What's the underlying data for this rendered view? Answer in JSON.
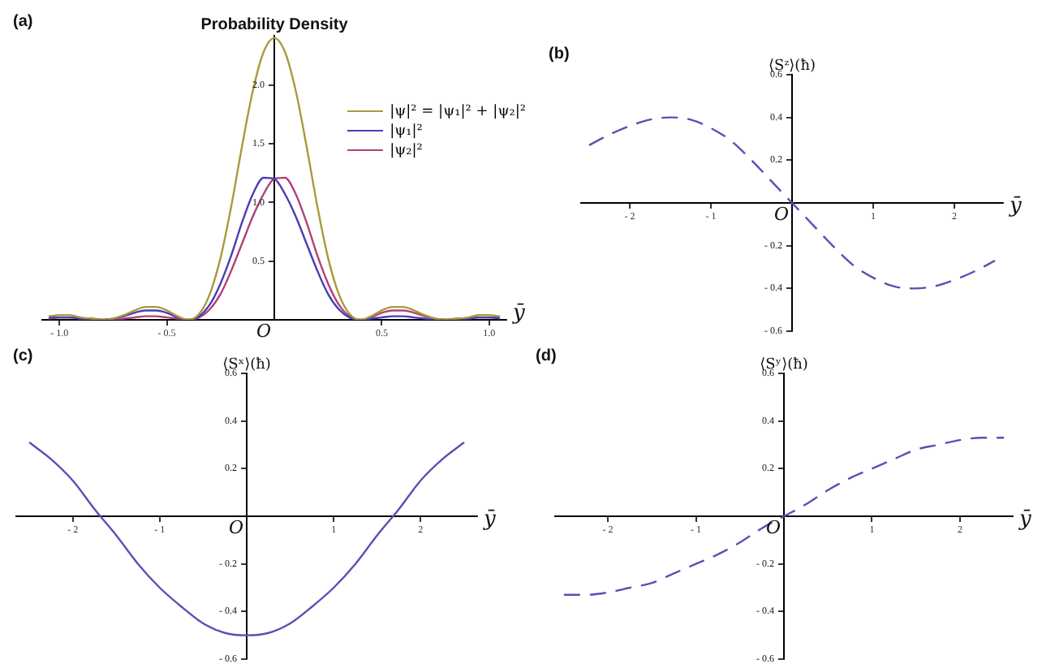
{
  "chart_data": [
    {
      "type": "line",
      "title": "Probability Density",
      "xlabel": "ȳ",
      "legend": "right",
      "line_style": "solid",
      "annotations": [
        "(a)",
        "O"
      ],
      "x": [
        -1.05,
        -1,
        -0.95,
        -0.9,
        -0.85,
        -0.8,
        -0.75,
        -0.7,
        -0.65,
        -0.6,
        -0.55,
        -0.5,
        -0.45,
        -0.4,
        -0.35,
        -0.3,
        -0.25,
        -0.2,
        -0.15,
        -0.1,
        -0.05,
        0,
        0.05,
        0.1,
        0.15,
        0.2,
        0.25,
        0.3,
        0.35,
        0.4,
        0.45,
        0.5,
        0.55,
        0.6,
        0.65,
        0.7,
        0.75,
        0.8,
        0.85,
        0.9,
        0.95,
        1,
        1.05
      ],
      "xlim": [
        -1.08,
        1.08
      ],
      "ylim": [
        0,
        2.42
      ],
      "xticks": [
        {
          "value": -1,
          "label": "- 1.0"
        },
        {
          "value": -0.5,
          "label": "- 0.5"
        },
        0.5,
        {
          "value": 1,
          "label": "1.0"
        }
      ],
      "yticks": [
        0.5,
        {
          "value": 1,
          "label": "1.0"
        },
        1.5,
        {
          "value": 2,
          "label": "2.0"
        }
      ],
      "series": [
        {
          "name": "|ψ|² = |ψ₁|² + |ψ₂|²",
          "color": "#a99a3c",
          "values": [
            0.03,
            0.04,
            0.04,
            0.02,
            0.01,
            0,
            0.01,
            0.04,
            0.08,
            0.11,
            0.11,
            0.08,
            0.03,
            0,
            0.05,
            0.22,
            0.53,
            0.97,
            1.48,
            1.95,
            2.28,
            2.4,
            2.28,
            1.95,
            1.48,
            0.97,
            0.53,
            0.22,
            0.05,
            0,
            0.03,
            0.08,
            0.11,
            0.11,
            0.08,
            0.04,
            0.01,
            0,
            0.01,
            0.02,
            0.04,
            0.04,
            0.03
          ]
        },
        {
          "name": "|ψ₁|²",
          "color": "#4a3db4",
          "values": [
            0.02,
            0.02,
            0.02,
            0.01,
            0.01,
            0,
            0.01,
            0.03,
            0.06,
            0.08,
            0.08,
            0.06,
            0.02,
            0,
            0.03,
            0.13,
            0.31,
            0.55,
            0.83,
            1.07,
            1.21,
            1.2,
            1.07,
            0.88,
            0.65,
            0.42,
            0.22,
            0.09,
            0.02,
            0,
            0.01,
            0.02,
            0.03,
            0.03,
            0.02,
            0.01,
            0,
            0,
            0,
            0.01,
            0.02,
            0.02,
            0.01
          ]
        },
        {
          "name": "|ψ₂|²",
          "color": "#b1407c",
          "values": [
            0.01,
            0.02,
            0.02,
            0.01,
            0,
            0,
            0,
            0.01,
            0.02,
            0.03,
            0.03,
            0.02,
            0.01,
            0,
            0.02,
            0.09,
            0.22,
            0.42,
            0.65,
            0.88,
            1.07,
            1.2,
            1.21,
            1.07,
            0.83,
            0.55,
            0.31,
            0.13,
            0.03,
            0,
            0.02,
            0.06,
            0.08,
            0.08,
            0.06,
            0.03,
            0.01,
            0,
            0.01,
            0.01,
            0.02,
            0.02,
            0.02
          ]
        }
      ]
    },
    {
      "type": "line",
      "xlabel": "ȳ",
      "ylabel": "⟨Sᶻ⟩(ħ)",
      "line_style": "dashed",
      "annotations": [
        "(b)",
        "O"
      ],
      "x": [
        -2.5,
        -2.25,
        -2,
        -1.75,
        -1.5,
        -1.25,
        -1,
        -0.75,
        -0.5,
        -0.25,
        0,
        0.25,
        0.5,
        0.75,
        1,
        1.25,
        1.5,
        1.75,
        2,
        2.25,
        2.5
      ],
      "xlim": [
        -2.6,
        2.6
      ],
      "ylim": [
        -0.6,
        0.6
      ],
      "xticks": [
        {
          "value": -2,
          "label": "- 2"
        },
        {
          "value": -1,
          "label": "- 1"
        },
        1,
        2
      ],
      "yticks": [
        {
          "value": -0.6,
          "label": "- 0.6"
        },
        {
          "value": -0.4,
          "label": "- 0.4"
        },
        {
          "value": -0.2,
          "label": "- 0.2"
        },
        0.2,
        0.4,
        0.6
      ],
      "series": [
        {
          "color": "#5552b4",
          "values": [
            0.27,
            0.32,
            0.36,
            0.39,
            0.4,
            0.39,
            0.35,
            0.29,
            0.2,
            0.1,
            0,
            -0.1,
            -0.2,
            -0.29,
            -0.35,
            -0.39,
            -0.4,
            -0.39,
            -0.36,
            -0.32,
            -0.27
          ]
        }
      ]
    },
    {
      "type": "line",
      "xlabel": "ȳ",
      "ylabel": "⟨Sˣ⟩(ħ)",
      "line_style": "solid",
      "annotations": [
        "(c)",
        "O"
      ],
      "x": [
        -2.5,
        -2.25,
        -2,
        -1.75,
        -1.5,
        -1.25,
        -1,
        -0.75,
        -0.5,
        -0.25,
        0,
        0.25,
        0.5,
        0.75,
        1,
        1.25,
        1.5,
        1.75,
        2,
        2.25,
        2.5
      ],
      "xlim": [
        -2.65,
        2.65
      ],
      "ylim": [
        -0.6,
        0.6
      ],
      "xticks": [
        {
          "value": -2,
          "label": "- 2"
        },
        {
          "value": -1,
          "label": "- 1"
        },
        1,
        2
      ],
      "yticks": [
        {
          "value": -0.6,
          "label": "- 0.6"
        },
        {
          "value": -0.4,
          "label": "- 0.4"
        },
        {
          "value": -0.2,
          "label": "- 0.2"
        },
        0.2,
        0.4,
        0.6
      ],
      "series": [
        {
          "color": "#5552b4",
          "values": [
            0.31,
            0.24,
            0.15,
            0.03,
            -0.08,
            -0.2,
            -0.3,
            -0.38,
            -0.45,
            -0.49,
            -0.5,
            -0.49,
            -0.45,
            -0.38,
            -0.3,
            -0.2,
            -0.08,
            0.03,
            0.15,
            0.24,
            0.31
          ]
        }
      ]
    },
    {
      "type": "line",
      "xlabel": "ȳ",
      "ylabel": "⟨Sʸ⟩(ħ)",
      "line_style": "dashed",
      "annotations": [
        "(d)",
        "O"
      ],
      "x": [
        -2.5,
        -2.25,
        -2,
        -1.75,
        -1.5,
        -1.25,
        -1,
        -0.75,
        -0.5,
        -0.25,
        0,
        0.25,
        0.5,
        0.75,
        1,
        1.25,
        1.5,
        1.75,
        2,
        2.25,
        2.5
      ],
      "xlim": [
        -2.6,
        2.6
      ],
      "ylim": [
        -0.6,
        0.6
      ],
      "xticks": [
        {
          "value": -2,
          "label": "- 2"
        },
        {
          "value": -1,
          "label": "- 1"
        },
        1,
        2
      ],
      "yticks": [
        {
          "value": -0.6,
          "label": "- 0.6"
        },
        {
          "value": -0.4,
          "label": "- 0.4"
        },
        {
          "value": -0.2,
          "label": "- 0.2"
        },
        0.2,
        0.4,
        0.6
      ],
      "series": [
        {
          "color": "#5552b4",
          "values": [
            -0.33,
            -0.33,
            -0.32,
            -0.3,
            -0.28,
            -0.24,
            -0.2,
            -0.16,
            -0.11,
            -0.05,
            0,
            0.05,
            0.11,
            0.16,
            0.2,
            0.24,
            0.28,
            0.3,
            0.32,
            0.33,
            0.33
          ]
        }
      ]
    }
  ]
}
